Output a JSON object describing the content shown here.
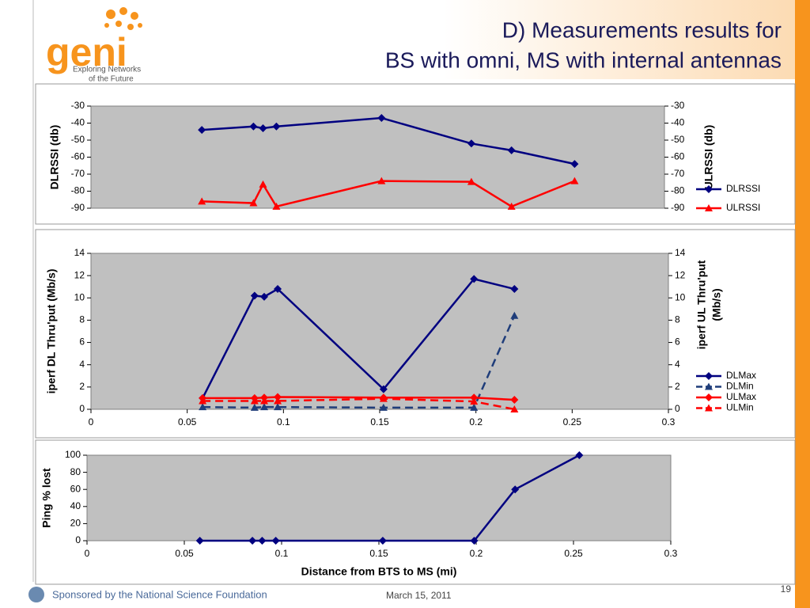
{
  "slide": {
    "title_line1": "D)  Measurements results for",
    "title_line2": "BS with omni, MS with internal antennas",
    "logo": "geni",
    "tagline": [
      "Exploring Networks",
      "of the Future"
    ],
    "sponsor": "Sponsored by the National Science Foundation",
    "date": "March 15, 2011",
    "page": "19"
  },
  "chart_data": [
    {
      "type": "line",
      "ylabel": "DLRSSI (db)",
      "y2label": [
        "ULRSSI (db)"
      ],
      "x": [
        0.058,
        0.085,
        0.09,
        0.097,
        0.152,
        0.199,
        0.22,
        0.253
      ],
      "xlim": [
        0,
        0.3
      ],
      "ylim": [
        -90,
        -30
      ],
      "yticks": [
        -30,
        -40,
        -50,
        -60,
        -70,
        -80,
        -90
      ],
      "y2lim": [
        -90,
        -30
      ],
      "y2ticks": [
        -30,
        -40,
        -50,
        -60,
        -70,
        -80,
        -90
      ],
      "series": [
        {
          "name": "DLRSSI",
          "color": "#000080",
          "marker": "diamond",
          "dashed": false,
          "values": [
            -44,
            -42,
            -43,
            -42,
            -37,
            -52,
            -56,
            -64
          ]
        },
        {
          "name": "ULRSSI",
          "color": "#ff0000",
          "marker": "triangle",
          "dashed": false,
          "axis": "y2",
          "values": [
            -86,
            -87,
            -76,
            -89,
            -74,
            -74.5,
            -89,
            -74
          ]
        }
      ]
    },
    {
      "type": "line",
      "ylabel": "iperf DL Thru'put  (Mb/s)",
      "y2label": [
        "iperf UL Thru'put",
        "(Mb/s)"
      ],
      "x": [
        0.058,
        0.085,
        0.09,
        0.097,
        0.152,
        0.199,
        0.22
      ],
      "xlim": [
        0,
        0.3
      ],
      "xticks": [
        0,
        0.05,
        0.1,
        0.15,
        0.2,
        0.25,
        0.3
      ],
      "ylim": [
        0,
        14
      ],
      "yticks": [
        0,
        2,
        4,
        6,
        8,
        10,
        12,
        14
      ],
      "y2lim": [
        0,
        14
      ],
      "y2ticks": [
        0,
        2,
        4,
        6,
        8,
        10,
        12,
        14
      ],
      "series": [
        {
          "name": "DLMax",
          "color": "#000080",
          "marker": "diamond",
          "dashed": false,
          "values": [
            1.0,
            10.2,
            10.1,
            10.8,
            1.8,
            11.7,
            10.8
          ]
        },
        {
          "name": "DLMin",
          "color": "#1f3d7a",
          "marker": "triangle",
          "dashed": true,
          "values": [
            0.2,
            0.15,
            0.2,
            0.2,
            0.15,
            0.15,
            8.4
          ]
        },
        {
          "name": "ULMax",
          "color": "#ff0000",
          "marker": "diamond",
          "dashed": false,
          "axis": "y2",
          "values": [
            1.0,
            1.0,
            1.05,
            1.1,
            1.05,
            1.05,
            0.85
          ]
        },
        {
          "name": "ULMin",
          "color": "#ff0000",
          "marker": "triangle",
          "dashed": true,
          "axis": "y2",
          "values": [
            0.75,
            0.75,
            0.75,
            0.75,
            0.95,
            0.7,
            0.0
          ]
        }
      ]
    },
    {
      "type": "line",
      "ylabel": "Ping % lost",
      "xlabel": "Distance from BTS to MS  (mi)",
      "x": [
        0.058,
        0.085,
        0.09,
        0.097,
        0.152,
        0.199,
        0.22,
        0.253
      ],
      "xlim": [
        0,
        0.3
      ],
      "xticks": [
        0,
        0.05,
        0.1,
        0.15,
        0.2,
        0.25,
        0.3
      ],
      "ylim": [
        0,
        100
      ],
      "yticks": [
        0,
        20,
        40,
        60,
        80,
        100
      ],
      "series": [
        {
          "name": "Ping % lost",
          "color": "#000080",
          "marker": "diamond",
          "dashed": false,
          "values": [
            0,
            0,
            0,
            0,
            0,
            0,
            60,
            100
          ]
        }
      ]
    }
  ]
}
